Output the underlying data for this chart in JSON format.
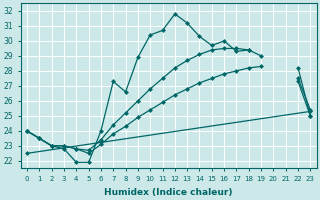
{
  "xlabel": "Humidex (Indice chaleur)",
  "bg_color": "#cce8e8",
  "line_color": "#006666",
  "grid_color": "#ffffff",
  "xlim": [
    -0.5,
    23.5
  ],
  "ylim": [
    21.5,
    32.5
  ],
  "xticks": [
    0,
    1,
    2,
    3,
    4,
    5,
    6,
    7,
    8,
    9,
    10,
    11,
    12,
    13,
    14,
    15,
    16,
    17,
    18,
    19,
    20,
    21,
    22,
    23
  ],
  "yticks": [
    22,
    23,
    24,
    25,
    26,
    27,
    28,
    29,
    30,
    31,
    32
  ],
  "line1_x": [
    0,
    1,
    2,
    3,
    4,
    5,
    6,
    7,
    8,
    9,
    10,
    11,
    12,
    13,
    14,
    15,
    16,
    17,
    18,
    19,
    20,
    21,
    22,
    23
  ],
  "line1_y": [
    24.0,
    23.5,
    23.0,
    22.8,
    21.9,
    21.9,
    24.0,
    27.3,
    26.6,
    28.9,
    30.4,
    30.7,
    31.8,
    31.2,
    30.3,
    29.7,
    30.0,
    29.3,
    29.4,
    null,
    null,
    null,
    28.2,
    25.0
  ],
  "line2_x": [
    0,
    1,
    2,
    3,
    4,
    5,
    6,
    7,
    8,
    9,
    10,
    11,
    12,
    13,
    14,
    15,
    16,
    17,
    18,
    19,
    20,
    21,
    22,
    23
  ],
  "line2_y": [
    24.0,
    23.5,
    23.0,
    23.0,
    22.8,
    22.7,
    23.4,
    24.4,
    25.2,
    26.0,
    26.8,
    27.5,
    28.2,
    28.7,
    29.1,
    29.4,
    29.5,
    29.5,
    29.4,
    29.0,
    null,
    null,
    27.3,
    25.0
  ],
  "line3_x": [
    0,
    1,
    2,
    3,
    4,
    5,
    6,
    7,
    8,
    9,
    10,
    11,
    12,
    13,
    14,
    15,
    16,
    17,
    18,
    19,
    20,
    21,
    22,
    23
  ],
  "line3_y": [
    24.0,
    23.5,
    23.0,
    23.0,
    22.8,
    22.5,
    23.1,
    23.8,
    24.3,
    24.9,
    25.4,
    25.9,
    26.4,
    26.8,
    27.2,
    27.5,
    27.8,
    28.0,
    28.2,
    28.3,
    null,
    null,
    27.5,
    25.4
  ],
  "line4_x": [
    0,
    23
  ],
  "line4_y": [
    22.5,
    25.3
  ]
}
